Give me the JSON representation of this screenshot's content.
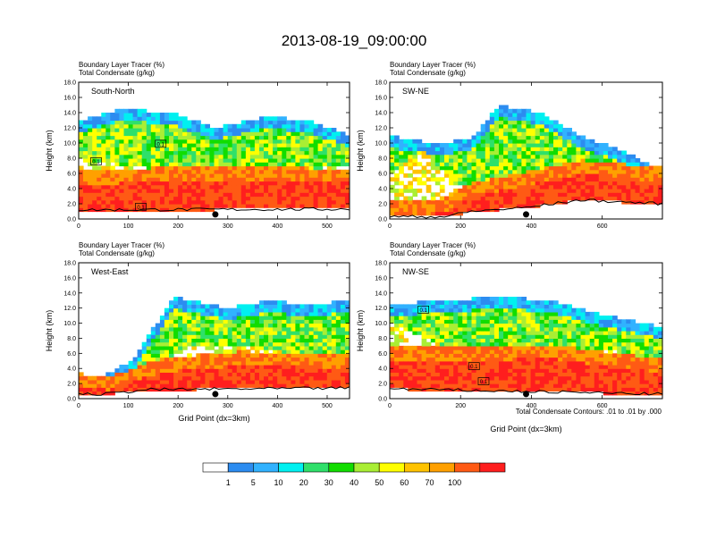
{
  "figure": {
    "title": "2013-08-19_09:00:00",
    "contour_note": "Total Condensate Contours: .01 to .01 by .000",
    "colorbar": {
      "labels": [
        "1",
        "5",
        "10",
        "20",
        "30",
        "40",
        "50",
        "60",
        "70",
        "100"
      ],
      "colors": [
        "#ffffff",
        "#2c8cf0",
        "#31b2ff",
        "#00f0f0",
        "#2fe06a",
        "#11dd00",
        "#a9ee34",
        "#ffff00",
        "#ffc300",
        "#ffa000",
        "#ff5a14",
        "#ff1e1e"
      ]
    }
  },
  "chart_data": [
    {
      "type": "heatmap",
      "panel": "South-North",
      "legend_line1": "Boundary Layer Tracer   (%)",
      "legend_line2": "Total Condensate   (g/kg)",
      "ylabel": "Height (km)",
      "xlabel": "",
      "xlim": [
        0,
        545
      ],
      "ylim": [
        0,
        18
      ],
      "xticks": [
        "0",
        "100",
        "200",
        "300",
        "400",
        "500"
      ],
      "yticks": [
        "0.0",
        "2.0",
        "4.0",
        "6.0",
        "8.0",
        "10.0",
        "12.0",
        "14.0",
        "16.0",
        "18.0"
      ],
      "marker_x": 275,
      "box_labels": [
        {
          "x": 35,
          "y": 7.6,
          "text": "0.1"
        },
        {
          "x": 165,
          "y": 9.9,
          "text": "0.1"
        },
        {
          "x": 125,
          "y": 1.6,
          "text": "0.1"
        }
      ]
    },
    {
      "type": "heatmap",
      "panel": "SW-NE",
      "legend_line1": "Boundary Layer Tracer   (%)",
      "legend_line2": "Total Condensate   (g/kg)",
      "ylabel": "Height (km)",
      "xlabel": "",
      "xlim": [
        0,
        770
      ],
      "ylim": [
        0,
        18
      ],
      "xticks": [
        "0",
        "200",
        "400",
        "600"
      ],
      "yticks": [
        "0.0",
        "2.0",
        "4.0",
        "6.0",
        "8.0",
        "10.0",
        "12.0",
        "14.0",
        "16.0",
        "18.0"
      ],
      "marker_x": 385,
      "box_labels": []
    },
    {
      "type": "heatmap",
      "panel": "West-East",
      "legend_line1": "Boundary Layer Tracer   (%)",
      "legend_line2": "Total Condensate   (g/kg)",
      "ylabel": "Height (km)",
      "xlabel": "Grid Point (dx=3km)",
      "xlim": [
        0,
        545
      ],
      "ylim": [
        0,
        18
      ],
      "xticks": [
        "0",
        "100",
        "200",
        "300",
        "400",
        "500"
      ],
      "yticks": [
        "0.0",
        "2.0",
        "4.0",
        "6.0",
        "8.0",
        "10.0",
        "12.0",
        "14.0",
        "16.0",
        "18.0"
      ],
      "marker_x": 275,
      "box_labels": []
    },
    {
      "type": "heatmap",
      "panel": "NW-SE",
      "legend_line1": "Boundary Layer Tracer   (%)",
      "legend_line2": "Total Condensate   (g/kg)",
      "ylabel": "Height (km)",
      "xlabel": "Grid Point (dx=3km)",
      "xlim": [
        0,
        770
      ],
      "ylim": [
        0,
        18
      ],
      "xticks": [
        "0",
        "200",
        "400",
        "600"
      ],
      "yticks": [
        "0.0",
        "2.0",
        "4.0",
        "6.0",
        "8.0",
        "10.0",
        "12.0",
        "14.0",
        "16.0",
        "18.0"
      ],
      "marker_x": 385,
      "box_labels": [
        {
          "x": 95,
          "y": 11.8,
          "text": "0.1"
        },
        {
          "x": 238,
          "y": 4.3,
          "text": "0.1"
        },
        {
          "x": 265,
          "y": 2.3,
          "text": "0.1"
        }
      ]
    }
  ]
}
